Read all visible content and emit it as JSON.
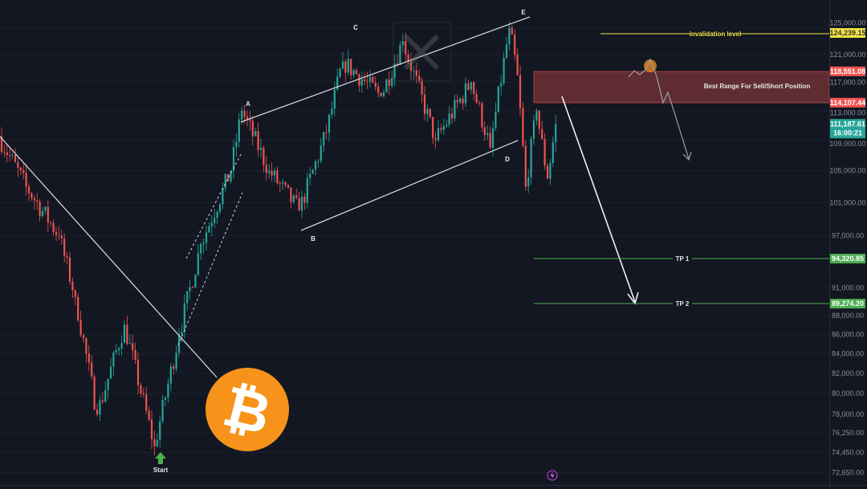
{
  "chart_data": {
    "type": "candlestick",
    "scale": "log",
    "grid": true,
    "y_ticks": [
      "125,000.00",
      "121,000.00",
      "117,000.00",
      "113,000.00",
      "109,000.00",
      "105,000.00",
      "101,000.00",
      "97,000.00",
      "91,000.00",
      "88,000.00",
      "86,000.00",
      "84,000.00",
      "82,000.00",
      "80,000.00",
      "78,000.00",
      "76,250.00",
      "74,450.00",
      "72,650.00"
    ],
    "y_tick_values": [
      125000,
      121000,
      117000,
      113000,
      109000,
      105000,
      101000,
      97000,
      91000,
      88000,
      86000,
      84000,
      82000,
      80000,
      78000,
      76250,
      74450,
      72650
    ],
    "price_swings": [
      {
        "i": 0,
        "p": 109500
      },
      {
        "i": 10,
        "p": 103000
      },
      {
        "i": 22,
        "p": 97000
      },
      {
        "i": 28,
        "p": 90000
      },
      {
        "i": 36,
        "p": 78000
      },
      {
        "i": 46,
        "p": 87000
      },
      {
        "i": 57,
        "p": 75000
      },
      {
        "i": 66,
        "p": 86000
      },
      {
        "i": 74,
        "p": 96000
      },
      {
        "i": 85,
        "p": 105000
      },
      {
        "i": 89,
        "p": 113000
      },
      {
        "i": 99,
        "p": 105000
      },
      {
        "i": 110,
        "p": 100000
      },
      {
        "i": 120,
        "p": 110000
      },
      {
        "i": 126,
        "p": 120000
      },
      {
        "i": 140,
        "p": 115000
      },
      {
        "i": 148,
        "p": 123000
      },
      {
        "i": 160,
        "p": 109000
      },
      {
        "i": 173,
        "p": 117000
      },
      {
        "i": 180,
        "p": 108000
      },
      {
        "i": 187,
        "p": 125000
      },
      {
        "i": 190,
        "p": 118000
      },
      {
        "i": 193,
        "p": 103000
      },
      {
        "i": 197,
        "p": 113000
      },
      {
        "i": 201,
        "p": 104000
      },
      {
        "i": 204,
        "p": 111187.61
      }
    ],
    "levels": [
      {
        "label": "invalidation level",
        "price": 124239.15,
        "tag": "124,239.15",
        "color": "#f5e642"
      },
      {
        "label": "TP 1",
        "price": 94320.85,
        "tag": "94,320.85",
        "color": "#4caf50"
      },
      {
        "label": "TP 2",
        "price": 89274.2,
        "tag": "89,274.20",
        "color": "#4caf50"
      }
    ],
    "zone": {
      "label": "Best Range For Sell/Short Position",
      "top": 118551.08,
      "bottom": 114107.44,
      "top_tag": "118,551.08",
      "bottom_tag": "114,107.44",
      "color": "#ef5350"
    },
    "current_price": {
      "tag": "111,187.61",
      "countdown": "16:00:21",
      "price": 111187.61,
      "color": "#26a69a"
    },
    "wave_labels": [
      {
        "label": "A",
        "price": 114500
      },
      {
        "label": "B",
        "price": 97800
      },
      {
        "label": "C",
        "price": 126500
      },
      {
        "label": "D",
        "price": 106500
      },
      {
        "label": "E",
        "price": 129000
      }
    ],
    "start_label": "Start",
    "colors": {
      "up": "#26a69a",
      "down": "#ef5350",
      "background": "#131722",
      "logo": "#f7931a"
    }
  }
}
